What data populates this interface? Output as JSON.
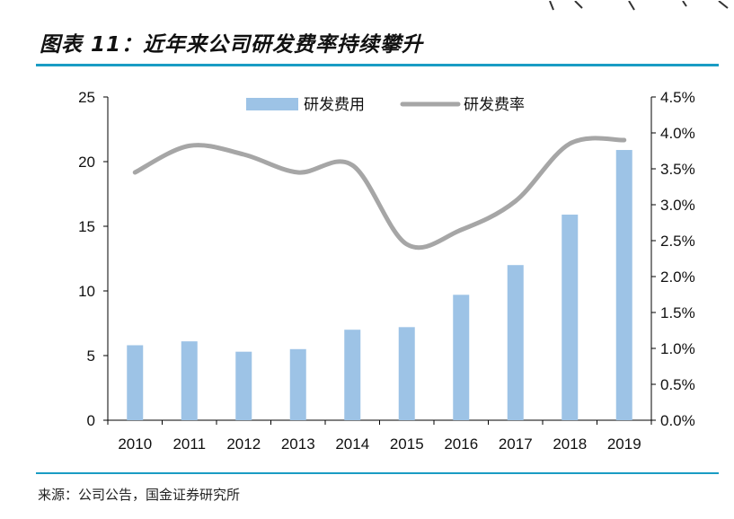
{
  "header": {
    "title": "图表 11：近年来公司研发费率持续攀升"
  },
  "footer": {
    "source": "来源：公司公告，国金证券研究所"
  },
  "colors": {
    "bar": "#9dc3e6",
    "line": "#a6a6a6",
    "rule": "#1a9cc4"
  },
  "chart_data": {
    "type": "bar",
    "categories": [
      "2010",
      "2011",
      "2012",
      "2013",
      "2014",
      "2015",
      "2016",
      "2017",
      "2018",
      "2019"
    ],
    "series": [
      {
        "name": "研发费用",
        "type": "bar",
        "axis": "left",
        "values": [
          5.8,
          6.1,
          5.3,
          5.5,
          7.0,
          7.2,
          9.7,
          12.0,
          15.9,
          20.9
        ]
      },
      {
        "name": "研发费率",
        "type": "line",
        "axis": "right",
        "values": [
          3.45,
          3.82,
          3.7,
          3.45,
          3.55,
          2.45,
          2.65,
          3.05,
          3.85,
          3.9
        ]
      }
    ],
    "ylim": [
      0,
      25
    ],
    "yticks": [
      "0",
      "5",
      "10",
      "15",
      "20",
      "25"
    ],
    "y2lim": [
      0,
      4.5
    ],
    "y2ticks": [
      "0.0%",
      "0.5%",
      "1.0%",
      "1.5%",
      "2.0%",
      "2.5%",
      "3.0%",
      "3.5%",
      "4.0%",
      "4.5%"
    ],
    "legend": "top-center",
    "grid": false
  }
}
